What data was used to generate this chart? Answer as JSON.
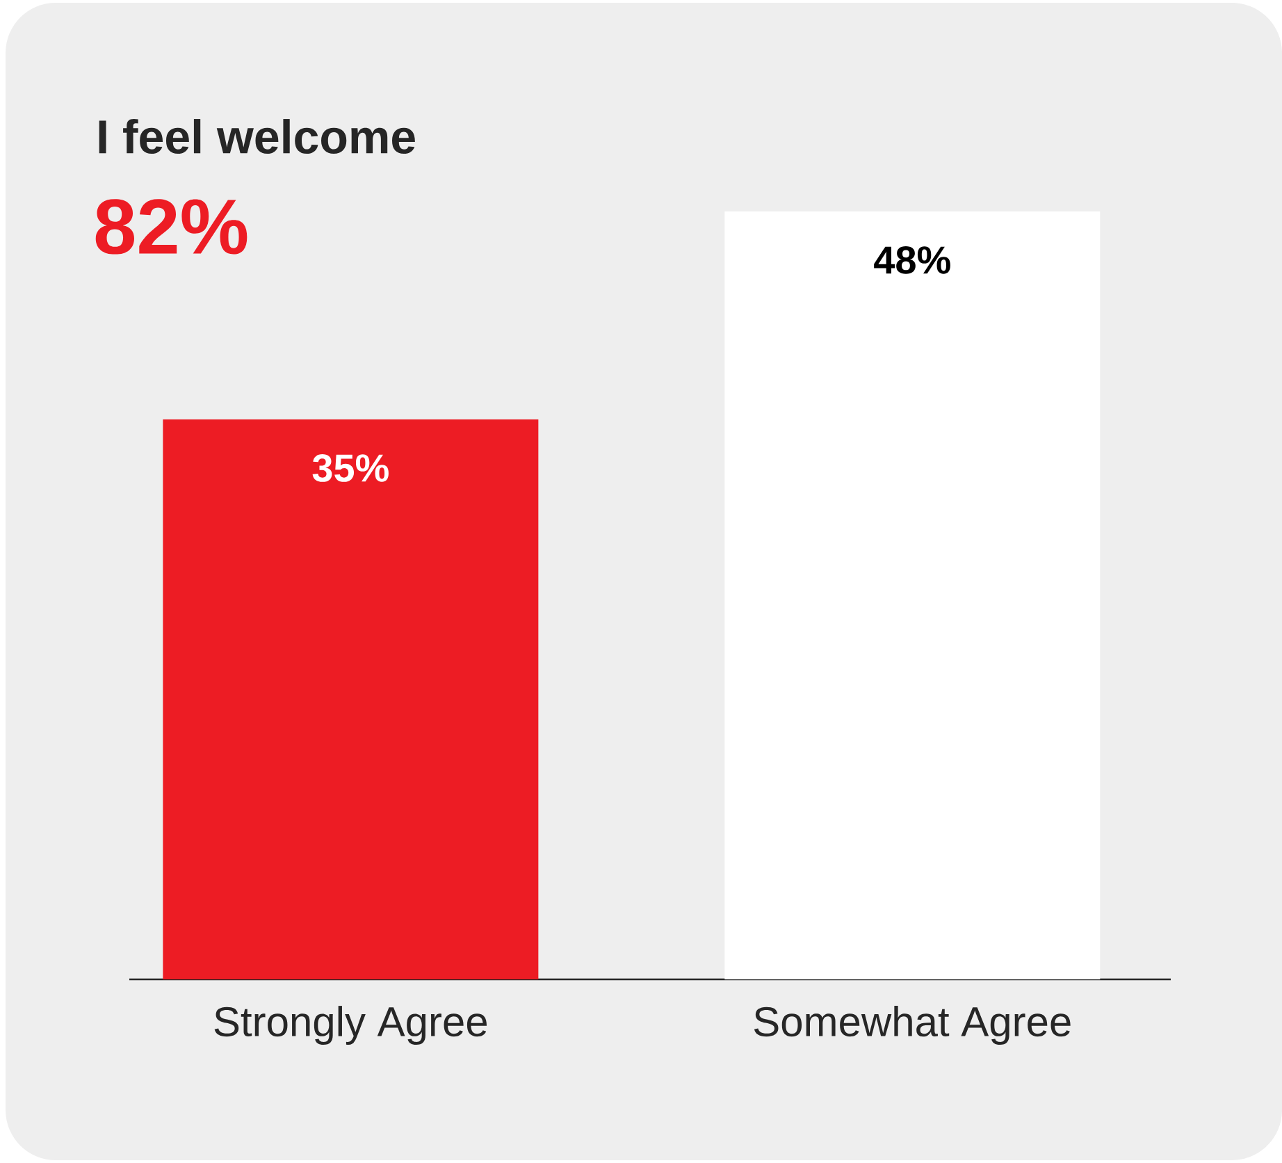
{
  "chart_data": {
    "type": "bar",
    "title": "I feel welcome",
    "subtitle": "82%",
    "categories": [
      "Strongly Agree",
      "Somewhat Agree"
    ],
    "values": [
      35,
      48
    ],
    "colors": [
      "#ed1c24",
      "#ffffff"
    ],
    "value_labels": [
      "35%",
      "48%"
    ]
  }
}
